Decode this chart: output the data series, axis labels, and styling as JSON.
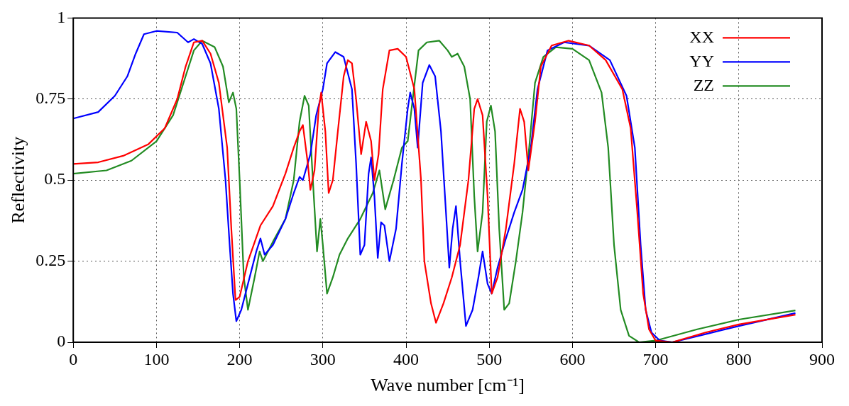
{
  "chart_data": {
    "type": "line",
    "xlabel": "Wave number [cm⁻¹]",
    "ylabel": "Reflectivity",
    "xlim": [
      0,
      900
    ],
    "xticks": [
      0,
      100,
      200,
      300,
      400,
      500,
      600,
      700,
      800,
      900
    ],
    "ylim": [
      0,
      1
    ],
    "yticks": [
      0,
      0.25,
      0.5,
      0.75,
      1
    ],
    "grid": true,
    "legend": "top right",
    "marker": "none",
    "line_style": "solid",
    "series": [
      {
        "name": "XX",
        "color": "#ff0000",
        "x": [
          0,
          30,
          60,
          90,
          110,
          125,
          135,
          145,
          155,
          165,
          175,
          185,
          190,
          195,
          200,
          210,
          225,
          240,
          255,
          265,
          272,
          276,
          282,
          285,
          290,
          295,
          298,
          303,
          307,
          312,
          318,
          325,
          330,
          335,
          340,
          346,
          352,
          358,
          362,
          367,
          372,
          380,
          390,
          400,
          410,
          418,
          422,
          430,
          436,
          445,
          455,
          465,
          475,
          482,
          486,
          492,
          498,
          503,
          510,
          520,
          530,
          537,
          542,
          547,
          555,
          562,
          575,
          595,
          620,
          640,
          660,
          670,
          678,
          685,
          692,
          700,
          720,
          760,
          800,
          868
        ],
        "values": [
          0.55,
          0.555,
          0.575,
          0.61,
          0.66,
          0.75,
          0.85,
          0.925,
          0.93,
          0.89,
          0.8,
          0.6,
          0.35,
          0.13,
          0.14,
          0.25,
          0.36,
          0.42,
          0.52,
          0.6,
          0.65,
          0.67,
          0.55,
          0.47,
          0.53,
          0.72,
          0.77,
          0.65,
          0.46,
          0.5,
          0.65,
          0.82,
          0.87,
          0.86,
          0.75,
          0.58,
          0.68,
          0.62,
          0.5,
          0.58,
          0.78,
          0.9,
          0.905,
          0.88,
          0.78,
          0.5,
          0.25,
          0.12,
          0.06,
          0.12,
          0.2,
          0.3,
          0.5,
          0.72,
          0.75,
          0.7,
          0.45,
          0.15,
          0.2,
          0.35,
          0.55,
          0.72,
          0.68,
          0.53,
          0.68,
          0.85,
          0.915,
          0.93,
          0.915,
          0.87,
          0.78,
          0.66,
          0.4,
          0.15,
          0.04,
          0.005,
          0,
          0.03,
          0.055,
          0.085
        ]
      },
      {
        "name": "YY",
        "color": "#0000ff",
        "x": [
          0,
          30,
          50,
          65,
          75,
          85,
          100,
          125,
          138,
          145,
          155,
          165,
          175,
          183,
          188,
          192,
          196,
          202,
          210,
          220,
          225,
          230,
          240,
          255,
          265,
          272,
          276,
          285,
          292,
          300,
          305,
          315,
          325,
          335,
          340,
          345,
          350,
          355,
          358,
          362,
          366,
          370,
          374,
          380,
          388,
          395,
          402,
          405,
          410,
          414,
          420,
          428,
          435,
          442,
          448,
          452,
          456,
          460,
          465,
          472,
          480,
          487,
          492,
          498,
          503,
          510,
          520,
          530,
          540,
          550,
          558,
          570,
          590,
          620,
          645,
          665,
          675,
          682,
          688,
          695,
          705,
          720,
          760,
          800,
          868
        ],
        "values": [
          0.69,
          0.71,
          0.76,
          0.82,
          0.89,
          0.95,
          0.96,
          0.955,
          0.925,
          0.935,
          0.92,
          0.86,
          0.72,
          0.5,
          0.3,
          0.15,
          0.065,
          0.1,
          0.18,
          0.28,
          0.32,
          0.27,
          0.3,
          0.38,
          0.46,
          0.51,
          0.5,
          0.58,
          0.7,
          0.78,
          0.86,
          0.895,
          0.88,
          0.78,
          0.55,
          0.27,
          0.3,
          0.52,
          0.57,
          0.45,
          0.26,
          0.37,
          0.36,
          0.25,
          0.35,
          0.55,
          0.72,
          0.77,
          0.72,
          0.6,
          0.8,
          0.855,
          0.82,
          0.65,
          0.4,
          0.23,
          0.35,
          0.42,
          0.25,
          0.05,
          0.1,
          0.2,
          0.28,
          0.18,
          0.15,
          0.23,
          0.32,
          0.4,
          0.47,
          0.6,
          0.78,
          0.9,
          0.925,
          0.915,
          0.87,
          0.76,
          0.6,
          0.3,
          0.1,
          0.03,
          0.005,
          0,
          0.025,
          0.05,
          0.09
        ]
      },
      {
        "name": "ZZ",
        "color": "#228b22",
        "x": [
          0,
          40,
          70,
          100,
          120,
          135,
          145,
          155,
          170,
          180,
          187,
          192,
          196,
          200,
          205,
          210,
          218,
          224,
          228,
          240,
          255,
          265,
          272,
          278,
          283,
          288,
          293,
          297,
          300,
          305,
          312,
          320,
          330,
          345,
          360,
          368,
          375,
          385,
          395,
          402,
          408,
          415,
          425,
          440,
          450,
          455,
          462,
          470,
          477,
          482,
          486,
          492,
          497,
          502,
          507,
          512,
          518,
          524,
          532,
          540,
          548,
          555,
          565,
          580,
          600,
          620,
          635,
          643,
          650,
          658,
          668,
          680,
          700,
          750,
          800,
          868
        ],
        "values": [
          0.52,
          0.53,
          0.56,
          0.62,
          0.7,
          0.82,
          0.9,
          0.93,
          0.91,
          0.85,
          0.74,
          0.77,
          0.72,
          0.5,
          0.2,
          0.1,
          0.2,
          0.28,
          0.25,
          0.31,
          0.38,
          0.5,
          0.68,
          0.76,
          0.73,
          0.5,
          0.28,
          0.38,
          0.3,
          0.15,
          0.2,
          0.27,
          0.32,
          0.38,
          0.46,
          0.53,
          0.41,
          0.5,
          0.6,
          0.62,
          0.75,
          0.9,
          0.925,
          0.93,
          0.9,
          0.88,
          0.89,
          0.85,
          0.75,
          0.45,
          0.28,
          0.4,
          0.68,
          0.73,
          0.65,
          0.35,
          0.1,
          0.12,
          0.25,
          0.4,
          0.6,
          0.8,
          0.88,
          0.91,
          0.905,
          0.87,
          0.77,
          0.6,
          0.3,
          0.1,
          0.02,
          0,
          0.005,
          0.04,
          0.07,
          0.098
        ]
      }
    ]
  }
}
